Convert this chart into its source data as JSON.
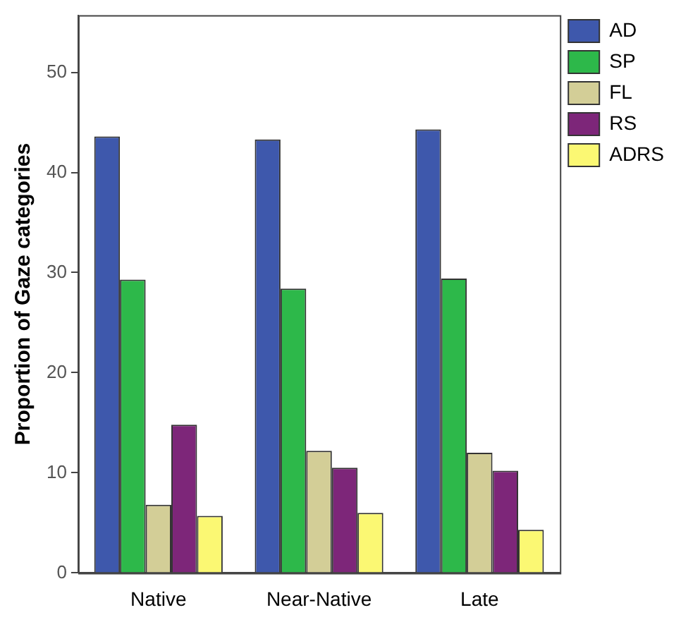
{
  "chart_data": {
    "type": "bar",
    "ylabel": "Proportion of Gaze categories",
    "categories": [
      "Native",
      "Near-Native",
      "Late"
    ],
    "series": [
      {
        "name": "AD",
        "color": "#3e58ac",
        "values": [
          43.6,
          43.3,
          44.3
        ]
      },
      {
        "name": "SP",
        "color": "#2db84a",
        "values": [
          29.3,
          28.4,
          29.4
        ]
      },
      {
        "name": "FL",
        "color": "#d3ce97",
        "values": [
          6.8,
          12.2,
          12.0
        ]
      },
      {
        "name": "RS",
        "color": "#7d2679",
        "values": [
          14.8,
          10.5,
          10.2
        ]
      },
      {
        "name": "ADRS",
        "color": "#fbf873",
        "values": [
          5.7,
          6.0,
          4.3
        ]
      }
    ],
    "ylim": [
      0,
      55.7
    ],
    "yticks": [
      0,
      10,
      20,
      30,
      40,
      50
    ],
    "grid": false,
    "legend": "top right"
  }
}
